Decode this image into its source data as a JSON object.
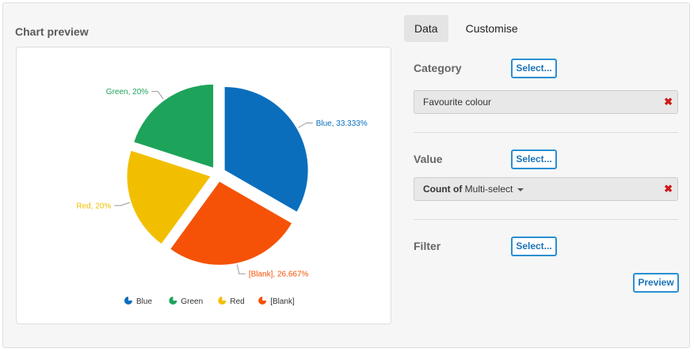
{
  "preview": {
    "title": "Chart preview"
  },
  "tabs": [
    {
      "label": "Data",
      "active": true
    },
    {
      "label": "Customise",
      "active": false
    }
  ],
  "category": {
    "label": "Category",
    "select_label": "Select...",
    "value": "Favourite colour",
    "remove_glyph": "✖"
  },
  "value_section": {
    "label": "Value",
    "select_label": "Select...",
    "value_prefix": "Count of",
    "value_field": "Multi-select",
    "remove_glyph": "✖"
  },
  "filter": {
    "label": "Filter",
    "select_label": "Select..."
  },
  "preview_button": {
    "label": "Preview"
  },
  "chart_data": {
    "type": "pie",
    "slices": [
      {
        "name": "Blue",
        "value": 33.333,
        "label": "Blue, 33.333%",
        "color": "#0a6ebd"
      },
      {
        "name": "[Blank]",
        "value": 26.667,
        "label": "[Blank], 26.667%",
        "color": "#f55207"
      },
      {
        "name": "Red",
        "value": 20,
        "label": "Red, 20%",
        "color": "#f2bf00"
      },
      {
        "name": "Green",
        "value": 20,
        "label": "Green, 20%",
        "color": "#1ea35a"
      }
    ],
    "legend": {
      "position": "bottom",
      "items": [
        "Blue",
        "Green",
        "Red",
        "[Blank]"
      ],
      "colors": [
        "#0a6ebd",
        "#1ea35a",
        "#f2bf00",
        "#f55207"
      ]
    }
  }
}
